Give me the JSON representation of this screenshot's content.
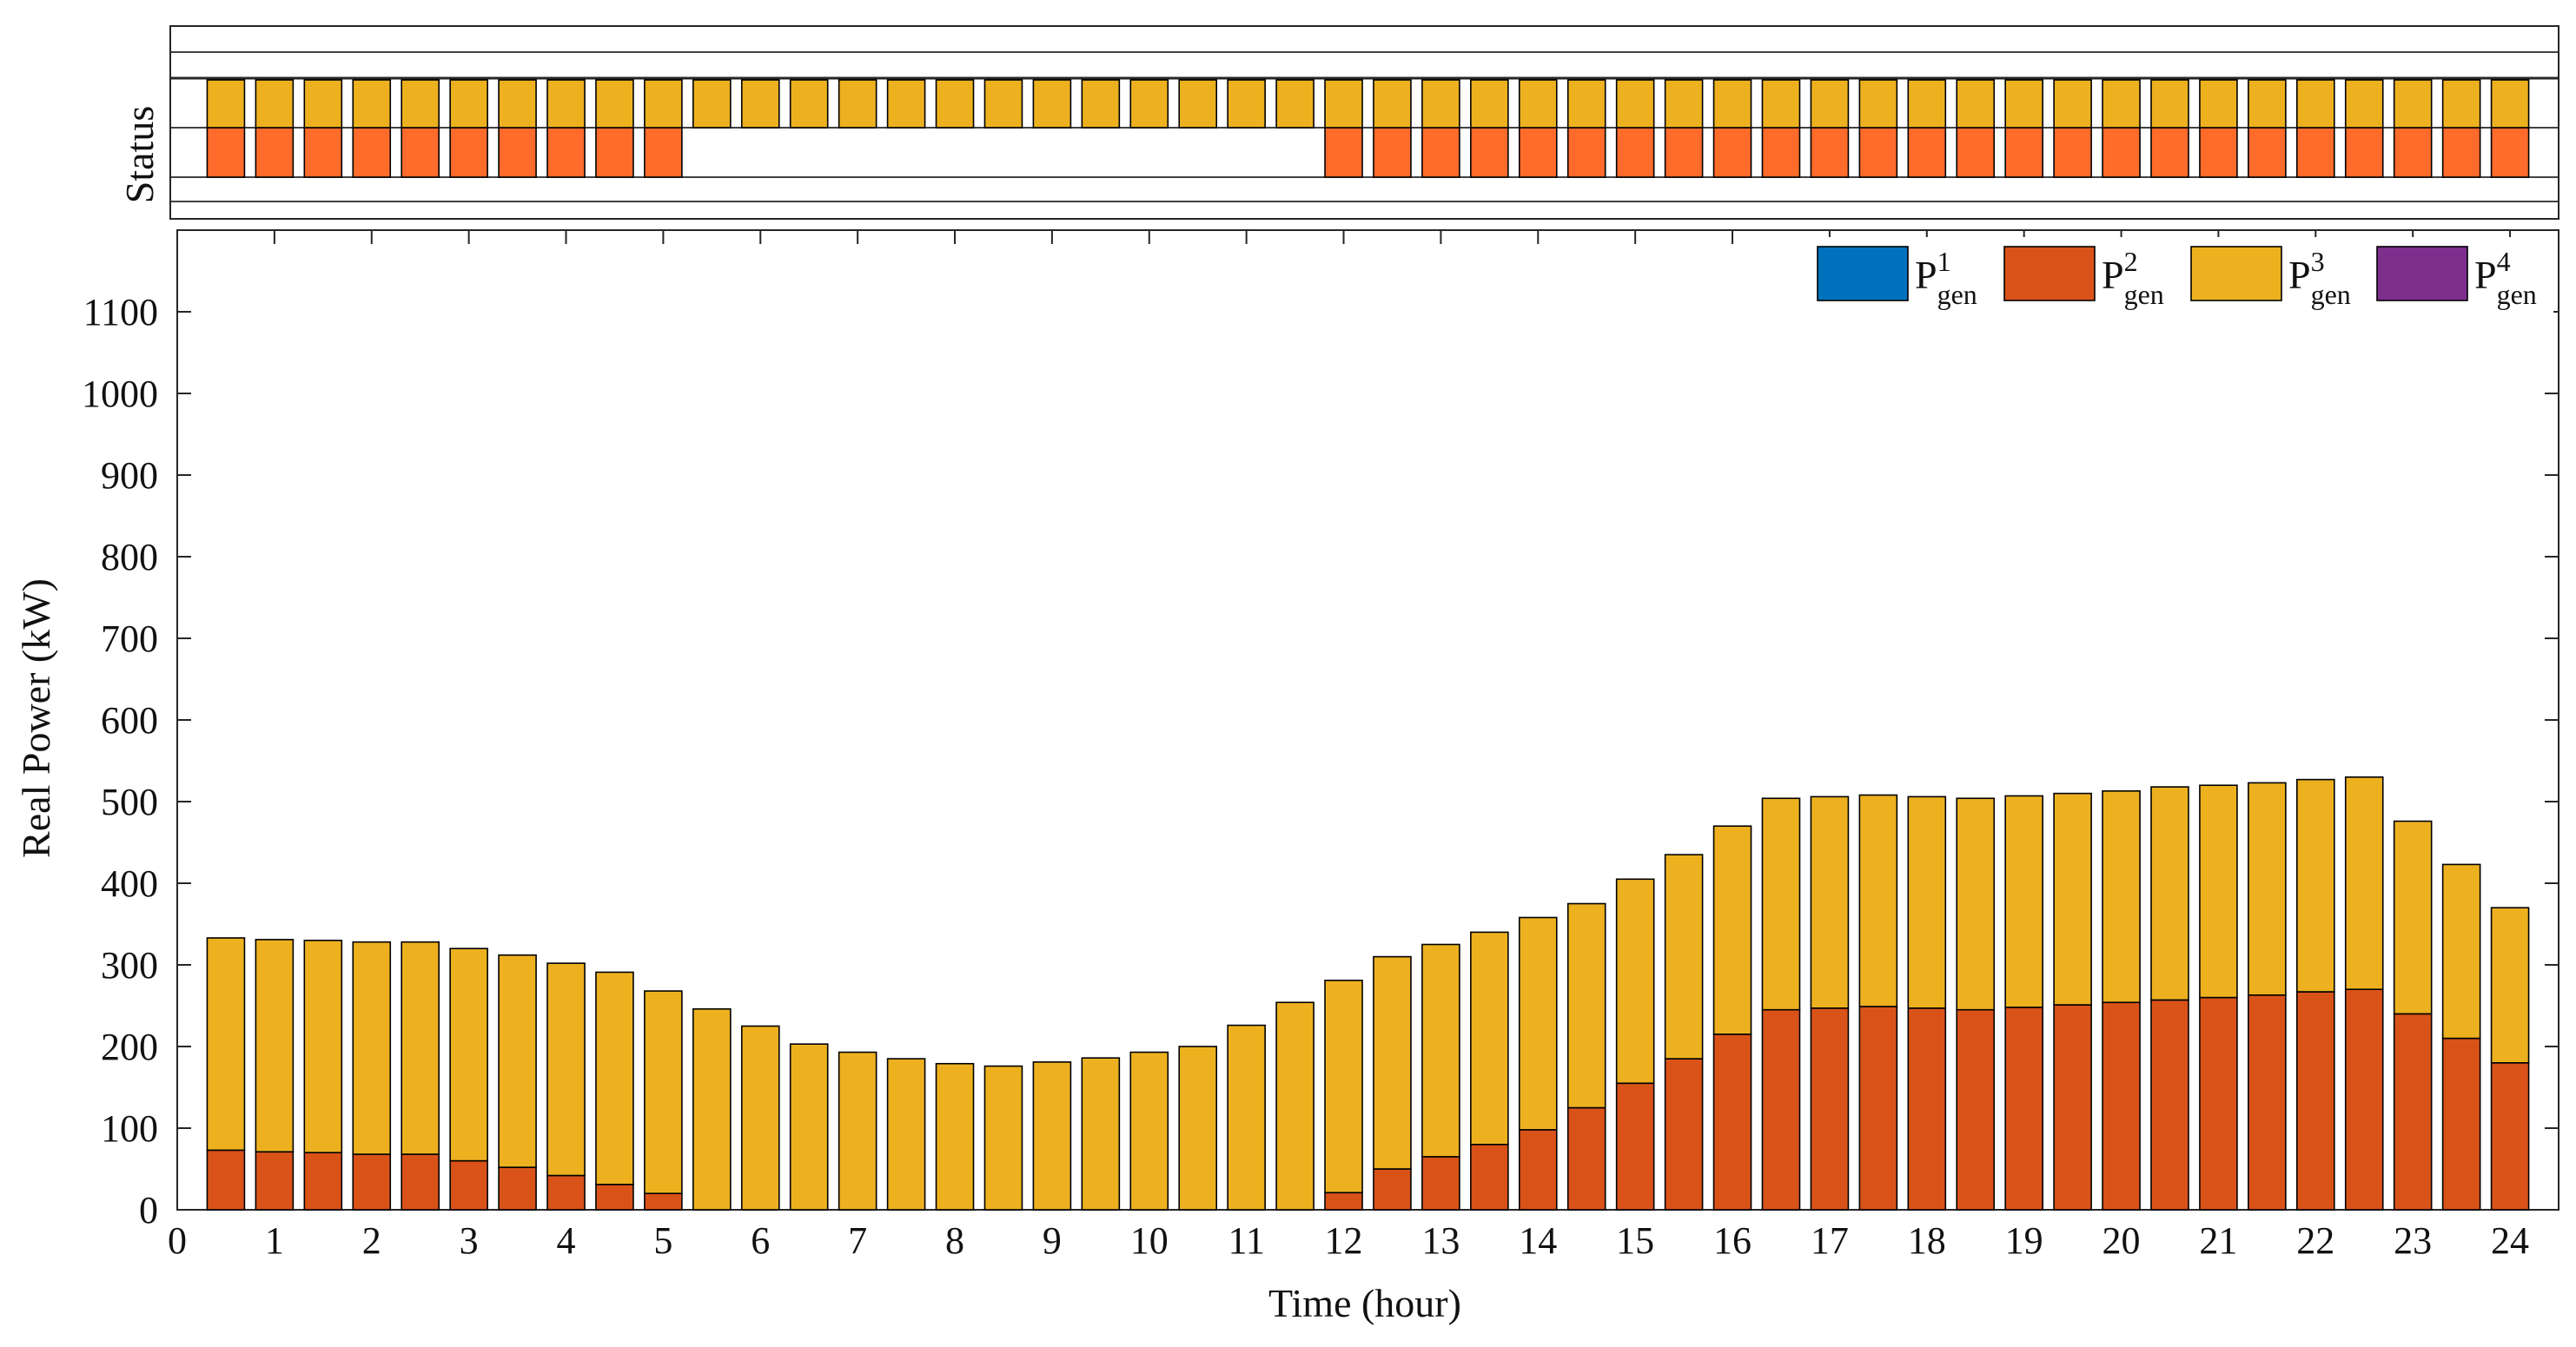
{
  "chart_data": {
    "type": "bar",
    "stacked": true,
    "xlabel": "Time (hour)",
    "ylabel": "Real Power (kW)",
    "status_label": "Status",
    "xlim": [
      0,
      24.5
    ],
    "ylim": [
      0,
      1200
    ],
    "x_ticks": [
      0,
      1,
      2,
      3,
      4,
      5,
      6,
      7,
      8,
      9,
      10,
      11,
      12,
      13,
      14,
      15,
      16,
      17,
      18,
      19,
      20,
      21,
      22,
      23,
      24
    ],
    "y_ticks": [
      0,
      100,
      200,
      300,
      400,
      500,
      600,
      700,
      800,
      900,
      1000,
      1100
    ],
    "x": [
      0.5,
      1,
      1.5,
      2,
      2.5,
      3,
      3.5,
      4,
      4.5,
      5,
      5.5,
      6,
      6.5,
      7,
      7.5,
      8,
      8.5,
      9,
      9.5,
      10,
      10.5,
      11,
      11.5,
      12,
      12.5,
      13,
      13.5,
      14,
      14.5,
      15,
      15.5,
      16,
      16.5,
      17,
      17.5,
      18,
      18.5,
      19,
      19.5,
      20,
      20.5,
      21,
      21.5,
      22,
      22.5,
      23,
      23.5,
      24
    ],
    "legend": {
      "location": "top-right",
      "entries": [
        {
          "base": "P",
          "sup": "1",
          "sub": "gen",
          "color": "#0072BD"
        },
        {
          "base": "P",
          "sup": "2",
          "sub": "gen",
          "color": "#D95319"
        },
        {
          "base": "P",
          "sup": "3",
          "sub": "gen",
          "color": "#EDB120"
        },
        {
          "base": "P",
          "sup": "4",
          "sub": "gen",
          "color": "#7E2F8E"
        }
      ]
    },
    "series": [
      {
        "name": "P1gen",
        "color": "#0072BD",
        "values": [
          0,
          0,
          0,
          0,
          0,
          0,
          0,
          0,
          0,
          0,
          0,
          0,
          0,
          0,
          0,
          0,
          0,
          0,
          0,
          0,
          0,
          0,
          0,
          0,
          0,
          0,
          0,
          0,
          0,
          0,
          0,
          0,
          0,
          0,
          0,
          0,
          0,
          0,
          0,
          0,
          0,
          0,
          0,
          0,
          0,
          0,
          0,
          0
        ]
      },
      {
        "name": "P2gen",
        "color": "#D95319",
        "values": [
          73,
          71,
          70,
          68,
          68,
          60,
          52,
          42,
          31,
          20,
          0,
          0,
          0,
          0,
          0,
          0,
          0,
          0,
          0,
          0,
          0,
          0,
          0,
          21,
          50,
          65,
          80,
          98,
          125,
          155,
          185,
          215,
          245,
          247,
          249,
          247,
          245,
          248,
          251,
          254,
          257,
          260,
          263,
          267,
          270,
          240,
          210,
          180
        ]
      },
      {
        "name": "P3gen",
        "color": "#EDB120",
        "values": [
          260,
          260,
          260,
          260,
          260,
          260,
          260,
          260,
          260,
          248,
          246,
          225,
          203,
          193,
          185,
          179,
          176,
          181,
          186,
          193,
          200,
          226,
          254,
          260,
          260,
          260,
          260,
          260,
          250,
          250,
          250,
          255,
          259,
          259,
          259,
          259,
          259,
          259,
          259,
          259,
          261,
          260,
          260,
          260,
          260,
          236,
          213,
          190
        ]
      }
    ],
    "status_rows": [
      {
        "name": "P2gen",
        "color": "#FF6B2B",
        "on": [
          1,
          1,
          1,
          1,
          1,
          1,
          1,
          1,
          1,
          1,
          0,
          0,
          0,
          0,
          0,
          0,
          0,
          0,
          0,
          0,
          0,
          0,
          0,
          1,
          1,
          1,
          1,
          1,
          1,
          1,
          1,
          1,
          1,
          1,
          1,
          1,
          1,
          1,
          1,
          1,
          1,
          1,
          1,
          1,
          1,
          1,
          1,
          1
        ]
      },
      {
        "name": "P3gen",
        "color": "#EDB120",
        "on": [
          1,
          1,
          1,
          1,
          1,
          1,
          1,
          1,
          1,
          1,
          1,
          1,
          1,
          1,
          1,
          1,
          1,
          1,
          1,
          1,
          1,
          1,
          1,
          1,
          1,
          1,
          1,
          1,
          1,
          1,
          1,
          1,
          1,
          1,
          1,
          1,
          1,
          1,
          1,
          1,
          1,
          1,
          1,
          1,
          1,
          1,
          1,
          1
        ]
      }
    ]
  }
}
